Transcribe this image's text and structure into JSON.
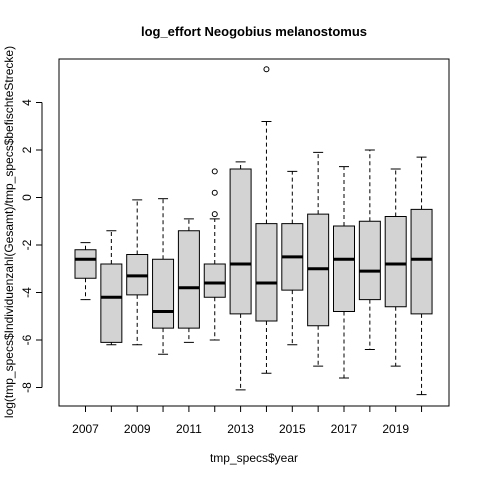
{
  "chart_data": {
    "type": "boxplot",
    "title": "log_effort Neogobius melanostomus",
    "xlabel": "tmp_specs$year",
    "ylabel": "log(tmp_specs$Individuenzahl(Gesamt)/tmp_specs$befischteStrecke)",
    "ylim": [
      -9,
      6
    ],
    "yticks": [
      -8,
      -6,
      -4,
      -2,
      0,
      2,
      4
    ],
    "categories": [
      "2007",
      "2008",
      "2009",
      "2010",
      "2011",
      "2012",
      "2013",
      "2014",
      "2015",
      "2016",
      "2017",
      "2018",
      "2019",
      "2020"
    ],
    "x_tick_labels": [
      "2007",
      "",
      "2009",
      "",
      "2011",
      "",
      "2013",
      "",
      "2015",
      "",
      "2017",
      "",
      "2019",
      ""
    ],
    "box_fill": "#d3d3d3",
    "boxes": [
      {
        "year": "2007",
        "min": -4.3,
        "q1": -3.4,
        "median": -2.6,
        "q3": -2.2,
        "max": -1.9,
        "outliers": []
      },
      {
        "year": "2008",
        "min": -6.2,
        "q1": -6.1,
        "median": -4.2,
        "q3": -2.8,
        "max": -1.4,
        "outliers": []
      },
      {
        "year": "2009",
        "min": -6.2,
        "q1": -4.1,
        "median": -3.3,
        "q3": -2.4,
        "max": -0.1,
        "outliers": []
      },
      {
        "year": "2010",
        "min": -6.6,
        "q1": -5.5,
        "median": -4.8,
        "q3": -2.6,
        "max": -0.05,
        "outliers": []
      },
      {
        "year": "2011",
        "min": -6.1,
        "q1": -5.5,
        "median": -3.8,
        "q3": -1.4,
        "max": -0.9,
        "outliers": []
      },
      {
        "year": "2012",
        "min": -6.0,
        "q1": -4.2,
        "median": -3.6,
        "q3": -2.8,
        "max": -0.9,
        "outliers": [
          -0.7,
          0.2,
          1.1
        ]
      },
      {
        "year": "2013",
        "min": -8.1,
        "q1": -4.9,
        "median": -2.8,
        "q3": 1.2,
        "max": 1.5,
        "outliers": []
      },
      {
        "year": "2014",
        "min": -7.4,
        "q1": -5.2,
        "median": -3.6,
        "q3": -1.1,
        "max": 3.2,
        "outliers": [
          5.4
        ]
      },
      {
        "year": "2015",
        "min": -6.2,
        "q1": -3.9,
        "median": -2.5,
        "q3": -1.1,
        "max": 1.1,
        "outliers": []
      },
      {
        "year": "2016",
        "min": -7.1,
        "q1": -5.4,
        "median": -3.0,
        "q3": -0.7,
        "max": 1.9,
        "outliers": []
      },
      {
        "year": "2017",
        "min": -7.6,
        "q1": -4.8,
        "median": -2.6,
        "q3": -1.2,
        "max": 1.3,
        "outliers": []
      },
      {
        "year": "2018",
        "min": -6.4,
        "q1": -4.3,
        "median": -3.1,
        "q3": -1.0,
        "max": 2.0,
        "outliers": []
      },
      {
        "year": "2019",
        "min": -7.1,
        "q1": -4.6,
        "median": -2.8,
        "q3": -0.8,
        "max": 1.2,
        "outliers": []
      },
      {
        "year": "2020",
        "min": -8.3,
        "q1": -4.9,
        "median": -2.6,
        "q3": -0.5,
        "max": 1.7,
        "outliers": []
      }
    ]
  }
}
